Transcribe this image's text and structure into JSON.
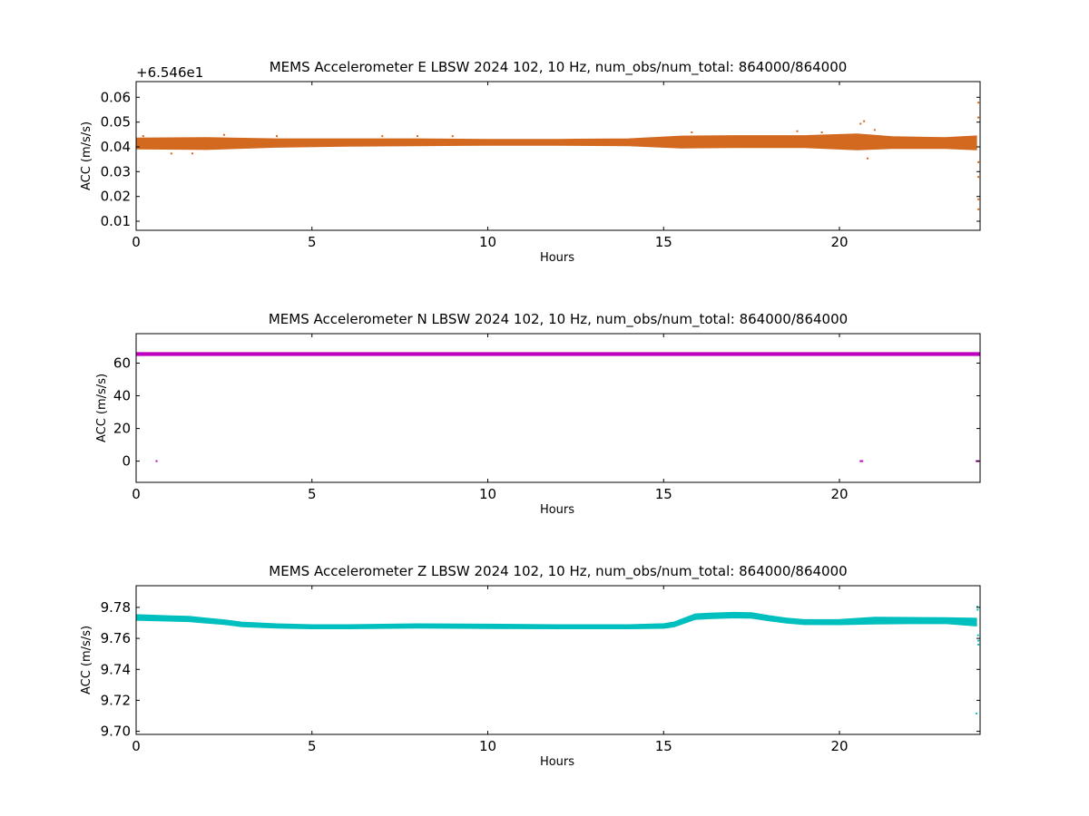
{
  "chart_data": [
    {
      "type": "scatter",
      "title": "MEMS Accelerometer E LBSW 2024 102, 10 Hz, num_obs/num_total: 864000/864000",
      "xlabel": "Hours",
      "ylabel": "ACC (m/s/s)",
      "y_offset_label": "+6.546e1",
      "xlim": [
        0,
        24
      ],
      "ylim": [
        0.0065,
        0.0665
      ],
      "x_ticks": [
        0,
        5,
        10,
        15,
        20
      ],
      "x_tick_labels": [
        "0",
        "5",
        "10",
        "15",
        "20"
      ],
      "y_ticks": [
        0.01,
        0.02,
        0.03,
        0.04,
        0.05,
        0.06
      ],
      "y_tick_labels": [
        "0.01",
        "0.02",
        "0.03",
        "0.04",
        "0.05",
        "0.06"
      ],
      "color": "#D2691E",
      "series": [
        {
          "x": [
            0,
            2,
            4,
            6,
            8,
            10,
            12,
            14,
            15.5,
            17,
            19,
            20.5,
            21.5,
            23,
            23.9
          ],
          "y": [
            0.0415,
            0.0415,
            0.0417,
            0.0419,
            0.042,
            0.042,
            0.042,
            0.042,
            0.0421,
            0.0423,
            0.0423,
            0.0422,
            0.0419,
            0.0417,
            0.0418
          ],
          "spread": [
            0.0022,
            0.0024,
            0.0017,
            0.0015,
            0.0014,
            0.0012,
            0.0012,
            0.0014,
            0.0024,
            0.0024,
            0.0024,
            0.0032,
            0.0024,
            0.0022,
            0.0028
          ]
        }
      ],
      "outliers": {
        "x": [
          0.2,
          1.0,
          1.6,
          2.5,
          4.0,
          7.0,
          8.0,
          9.0,
          15.8,
          18.8,
          19.5,
          20.6,
          20.7,
          20.8,
          21.0,
          23.95,
          23.95,
          23.95,
          23.95,
          23.95,
          23.95
        ],
        "y": [
          0.0445,
          0.0375,
          0.0375,
          0.045,
          0.0445,
          0.0445,
          0.0445,
          0.0445,
          0.046,
          0.0465,
          0.046,
          0.0495,
          0.0505,
          0.0355,
          0.047,
          0.058,
          0.052,
          0.034,
          0.028,
          0.019,
          0.015
        ]
      }
    },
    {
      "type": "scatter",
      "title": "MEMS Accelerometer N LBSW 2024 102, 10 Hz, num_obs/num_total: 864000/864000",
      "xlabel": "Hours",
      "ylabel": "ACC (m/s/s)",
      "xlim": [
        0,
        24
      ],
      "ylim": [
        -13,
        78
      ],
      "x_ticks": [
        0,
        5,
        10,
        15,
        20
      ],
      "x_tick_labels": [
        "0",
        "5",
        "10",
        "15",
        "20"
      ],
      "y_ticks": [
        0,
        20,
        40,
        60
      ],
      "y_tick_labels": [
        "0",
        "20",
        "40",
        "60"
      ],
      "color": "#BF00BF",
      "series": [
        {
          "x": [
            0,
            24
          ],
          "y": [
            65.5,
            65.5
          ],
          "spread": [
            0.9,
            0.9
          ]
        }
      ],
      "outliers": {
        "x": [
          0.58,
          20.6,
          20.65,
          23.9,
          23.95
        ],
        "y": [
          0,
          0,
          0,
          0,
          0
        ]
      }
    },
    {
      "type": "scatter",
      "title": "MEMS Accelerometer Z LBSW 2024 102, 10 Hz, num_obs/num_total: 864000/864000",
      "xlabel": "Hours",
      "ylabel": "ACC (m/s/s)",
      "xlim": [
        0,
        24
      ],
      "ylim": [
        9.698,
        9.794
      ],
      "x_ticks": [
        0,
        5,
        10,
        15,
        20
      ],
      "x_tick_labels": [
        "0",
        "5",
        "10",
        "15",
        "20"
      ],
      "y_ticks": [
        9.7,
        9.72,
        9.74,
        9.76,
        9.78
      ],
      "y_tick_labels": [
        "9.70",
        "9.72",
        "9.74",
        "9.76",
        "9.78"
      ],
      "color": "#00BFBF",
      "series": [
        {
          "x": [
            0,
            1,
            1.5,
            2,
            2.5,
            3,
            4,
            5,
            6,
            8,
            10,
            12,
            14,
            15,
            15.3,
            15.6,
            15.9,
            16.3,
            17,
            17.5,
            18,
            18.5,
            19,
            20,
            21,
            22,
            23,
            23.9
          ],
          "y": [
            9.7735,
            9.7728,
            9.7725,
            9.7715,
            9.7705,
            9.769,
            9.768,
            9.7675,
            9.7675,
            9.768,
            9.7678,
            9.7675,
            9.7675,
            9.768,
            9.769,
            9.7715,
            9.774,
            9.7745,
            9.775,
            9.7748,
            9.773,
            9.7715,
            9.7705,
            9.7705,
            9.7715,
            9.7715,
            9.7715,
            9.7705
          ],
          "spread": [
            0.0018,
            0.0017,
            0.0017,
            0.0016,
            0.0015,
            0.0015,
            0.0014,
            0.0013,
            0.0013,
            0.0014,
            0.0014,
            0.0013,
            0.0013,
            0.0015,
            0.0016,
            0.0017,
            0.0018,
            0.0018,
            0.0018,
            0.0018,
            0.0017,
            0.0016,
            0.0016,
            0.0017,
            0.0022,
            0.002,
            0.0019,
            0.0025
          ]
        }
      ],
      "outliers": {
        "x": [
          23.92,
          23.93,
          23.94,
          23.95,
          23.95,
          23.9
        ],
        "y": [
          9.7805,
          9.7785,
          9.762,
          9.7585,
          9.756,
          9.7115
        ]
      }
    }
  ]
}
